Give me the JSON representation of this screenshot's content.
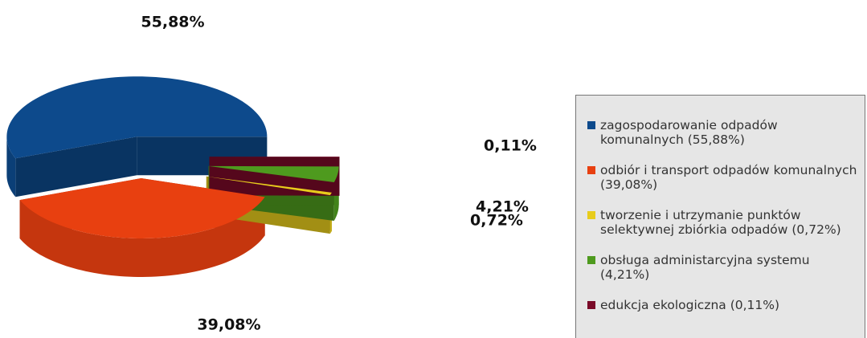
{
  "chart_data": {
    "type": "pie",
    "categories": [
      "zagospodarowanie odpadów komunalnych (55,88%)",
      "odbiór i transport odpadów komunalnych (39,08%)",
      "tworzenie i utrzymanie punktów selektywnej zbiórkia odpadów (0,72%)",
      "obsługa administarcyjna systemu (4,21%)",
      "edukcja ekologiczna (0,11%)"
    ],
    "values": [
      55.88,
      39.08,
      0.72,
      4.21,
      0.11
    ],
    "value_labels": [
      "55,88%",
      "39,08%",
      "0,72%",
      "4,21%",
      "0,11%"
    ],
    "colors": [
      "#0d4a8c",
      "#e84010",
      "#e8cc1c",
      "#4e9a1e",
      "#7a0a28"
    ],
    "legend": "right"
  }
}
